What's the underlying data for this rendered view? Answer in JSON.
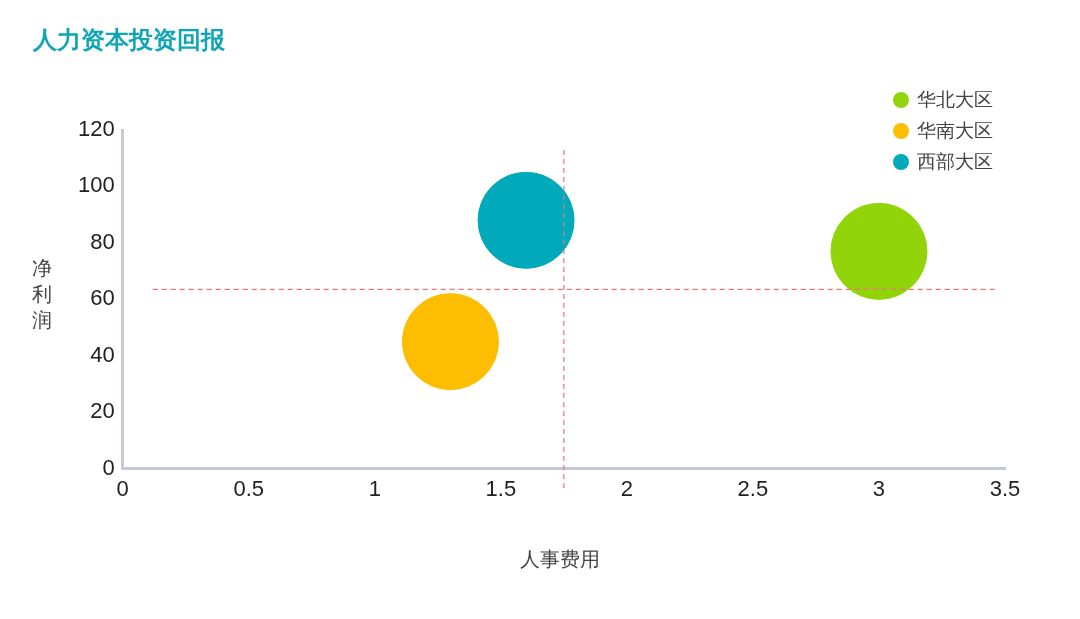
{
  "chart_data": {
    "type": "bubble",
    "title": "人力资本投资回报",
    "xlabel": "人事费用",
    "ylabel": "净利润",
    "series": [
      {
        "name": "华北大区",
        "color": "#92d40a",
        "x": [
          3.0
        ],
        "values": [
          77
        ],
        "sizes": [
          1
        ]
      },
      {
        "name": "华南大区",
        "color": "#fdbd00",
        "x": [
          1.3
        ],
        "values": [
          45
        ],
        "sizes": [
          1
        ]
      },
      {
        "name": "西部大区",
        "color": "#00aabb",
        "x": [
          1.6
        ],
        "values": [
          88
        ],
        "sizes": [
          1
        ]
      }
    ],
    "xlim": [
      0,
      3.5
    ],
    "xticks": [
      0,
      0.5,
      1,
      1.5,
      2,
      2.5,
      3,
      3.5
    ],
    "ylim": [
      0,
      120
    ],
    "yticks": [
      0,
      20,
      40,
      60,
      80,
      100,
      120
    ],
    "ref_lines": [
      {
        "axis": "x",
        "value": 1.75,
        "color": "#e8737a",
        "line_style": "dashed"
      },
      {
        "axis": "y",
        "value": 63.5,
        "color": "#e8737a",
        "line_style": "dashed"
      }
    ],
    "grid": false,
    "legend": "top right"
  }
}
